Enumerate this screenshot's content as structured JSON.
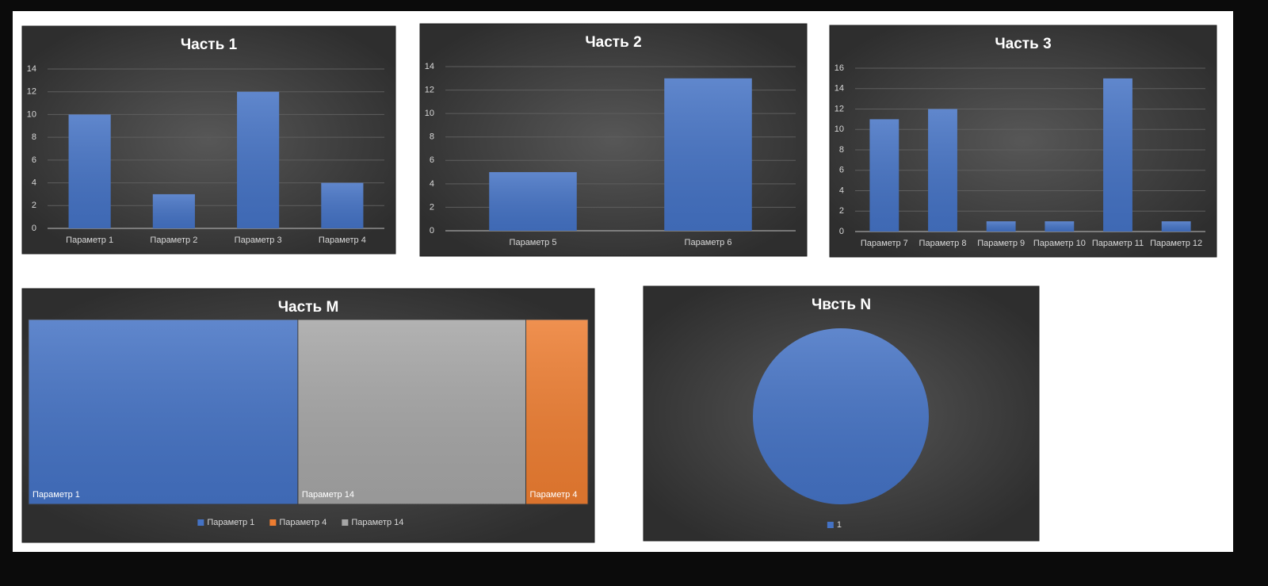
{
  "chart_data": [
    {
      "type": "bar",
      "title": "Часть 1",
      "categories": [
        "Параметр 1",
        "Параметр 2",
        "Параметр 3",
        "Параметр 4"
      ],
      "values": [
        10,
        3,
        12,
        4
      ],
      "color": "#4472c4",
      "ylim": [
        0,
        14
      ],
      "yticks": [
        0,
        2,
        4,
        6,
        8,
        10,
        12,
        14
      ],
      "grid": true
    },
    {
      "type": "bar",
      "title": "Часть 2",
      "categories": [
        "Параметр 5",
        "Параметр 6"
      ],
      "values": [
        5,
        13
      ],
      "color": "#4472c4",
      "ylim": [
        0,
        14
      ],
      "yticks": [
        0,
        2,
        4,
        6,
        8,
        10,
        12,
        14
      ],
      "grid": true
    },
    {
      "type": "bar",
      "title": "Часть 3",
      "categories": [
        "Параметр 7",
        "Параметр 8",
        "Параметр 9",
        "Параметр 10",
        "Параметр 11",
        "Параметр 12"
      ],
      "values": [
        11,
        12,
        1,
        1,
        15,
        1
      ],
      "color": "#4472c4",
      "ylim": [
        0,
        16
      ],
      "yticks": [
        0,
        2,
        4,
        6,
        8,
        10,
        12,
        14,
        16
      ],
      "grid": true
    },
    {
      "type": "treemap",
      "title": "Часть M",
      "categories": [
        "Параметр 1",
        "Параметр 4",
        "Параметр 14"
      ],
      "values": [
        13,
        3,
        11
      ],
      "colors": [
        "#4472c4",
        "#ed7d31",
        "#a5a5a5"
      ],
      "legend": "bottom"
    },
    {
      "type": "pie",
      "title": "Чвсть N",
      "categories": [
        "1"
      ],
      "values": [
        100
      ],
      "colors": [
        "#4472c4"
      ],
      "legend": "bottom"
    }
  ]
}
